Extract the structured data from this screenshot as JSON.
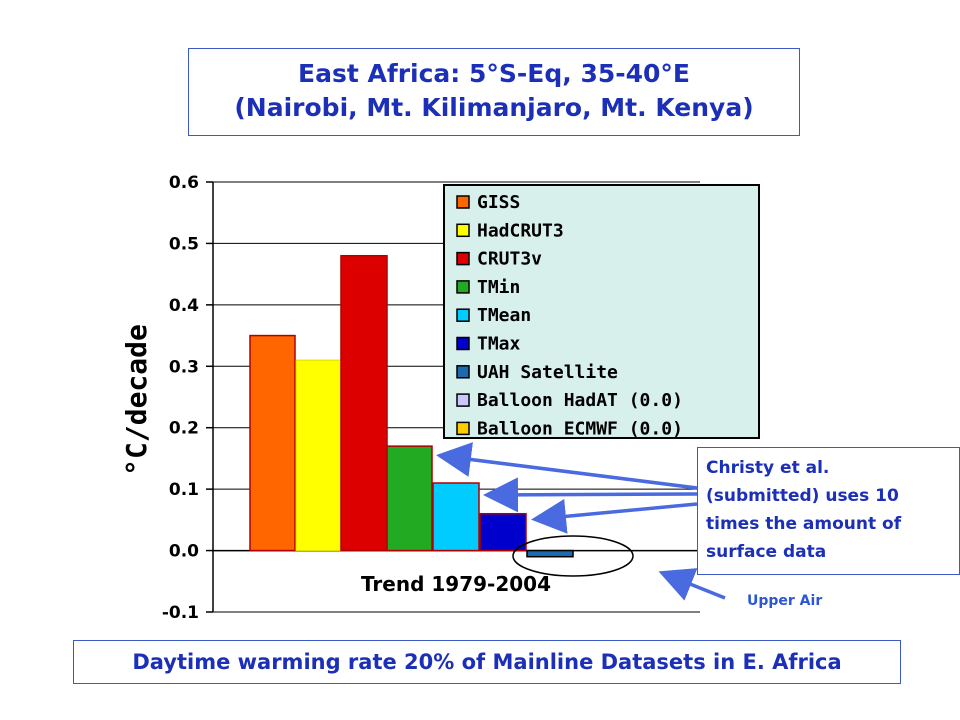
{
  "title": {
    "line1": "East Africa: 5°S-Eq, 35-40°E",
    "line2": "(Nairobi, Mt. Kilimanjaro, Mt. Kenya)"
  },
  "chart_data": {
    "type": "bar",
    "xlabel": "Trend 1979-2004",
    "ylabel": "°C/decade",
    "ylim": [
      -0.1,
      0.6
    ],
    "yticks": [
      0.6,
      0.5,
      0.4,
      0.3,
      0.2,
      0.1,
      0.0,
      -0.1
    ],
    "ytick_labels": [
      "0.6",
      "0.5",
      "0.4",
      "0.3",
      "0.2",
      "0.1",
      "0.0",
      "-0.1"
    ],
    "legend_position": "top-right",
    "series": [
      {
        "name": "GISS",
        "value": 0.35,
        "color": "#ff6600"
      },
      {
        "name": "HadCRUT3",
        "value": 0.31,
        "color": "#ffff00"
      },
      {
        "name": "CRUT3v",
        "value": 0.48,
        "color": "#dd0000"
      },
      {
        "name": "TMin",
        "value": 0.17,
        "color": "#22aa22"
      },
      {
        "name": "TMean",
        "value": 0.11,
        "color": "#00ccff"
      },
      {
        "name": "TMax",
        "value": 0.06,
        "color": "#0000cc"
      },
      {
        "name": "UAH Satellite",
        "value": -0.01,
        "color": "#1c6ab0"
      },
      {
        "name": "Balloon HadAT (0.0)",
        "value": 0.0,
        "color": "#c8c8ff"
      },
      {
        "name": "Balloon ECMWF  (0.0)",
        "value": 0.0,
        "color": "#ffcc00"
      }
    ]
  },
  "note": {
    "text": "Christy et al.\n(submitted) uses 10\ntimes the amount of\nsurface data"
  },
  "upper_air_label": "Upper Air",
  "footer": "Daytime warming rate 20% of Mainline Datasets in E. Africa",
  "colors": {
    "text_blue": "#1c2fb8",
    "arrow_blue": "#4a6ae0",
    "legend_bg": "#d8f0ec",
    "box_border": "#3b59c8"
  }
}
